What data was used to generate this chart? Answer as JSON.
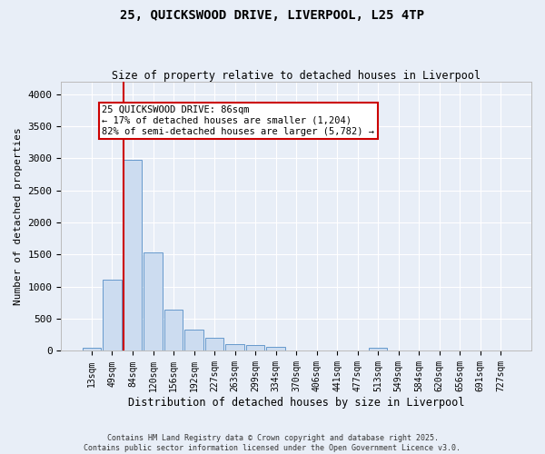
{
  "title": "25, QUICKSWOOD DRIVE, LIVERPOOL, L25 4TP",
  "subtitle": "Size of property relative to detached houses in Liverpool",
  "xlabel": "Distribution of detached houses by size in Liverpool",
  "ylabel": "Number of detached properties",
  "footer_line1": "Contains HM Land Registry data © Crown copyright and database right 2025.",
  "footer_line2": "Contains public sector information licensed under the Open Government Licence v3.0.",
  "bar_labels": [
    "13sqm",
    "49sqm",
    "84sqm",
    "120sqm",
    "156sqm",
    "192sqm",
    "227sqm",
    "263sqm",
    "299sqm",
    "334sqm",
    "370sqm",
    "406sqm",
    "441sqm",
    "477sqm",
    "513sqm",
    "549sqm",
    "584sqm",
    "620sqm",
    "656sqm",
    "691sqm",
    "727sqm"
  ],
  "bar_values": [
    55,
    1110,
    2975,
    1530,
    650,
    330,
    200,
    105,
    95,
    60,
    10,
    10,
    5,
    5,
    45,
    5,
    5,
    2,
    2,
    2,
    2
  ],
  "bar_color": "#ccdcf0",
  "bar_edge_color": "#6699cc",
  "background_color": "#e8eef7",
  "grid_color": "#ffffff",
  "vline_color": "#cc0000",
  "vline_x_index": 2,
  "annotation_text": "25 QUICKSWOOD DRIVE: 86sqm\n← 17% of detached houses are smaller (1,204)\n82% of semi-detached houses are larger (5,782) →",
  "ylim": [
    0,
    4200
  ],
  "yticks": [
    0,
    500,
    1000,
    1500,
    2000,
    2500,
    3000,
    3500,
    4000
  ]
}
